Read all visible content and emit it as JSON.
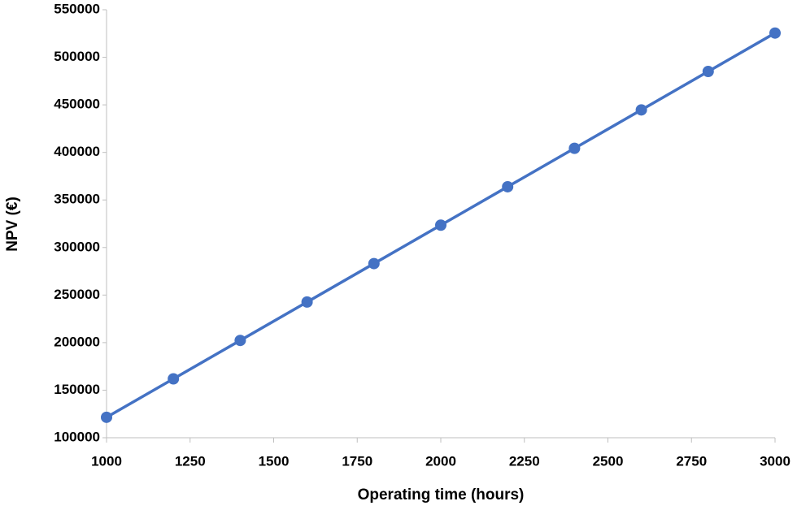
{
  "chart_data": {
    "type": "line",
    "x_label": "Operating time (hours)",
    "y_label": "NPV (€)",
    "x": [
      1000,
      1200,
      1400,
      1600,
      1800,
      2000,
      2200,
      2400,
      2600,
      2800,
      3000
    ],
    "series": [
      {
        "color": "#4472c4",
        "values": [
          121500,
          161900,
          202300,
          242700,
          283100,
          323500,
          363900,
          404300,
          444700,
          485100,
          525500
        ]
      }
    ],
    "xlim": [
      1000,
      3000
    ],
    "xticks": [
      1000,
      1250,
      1500,
      1750,
      2000,
      2250,
      2500,
      2750,
      3000
    ],
    "ylim": [
      100000,
      550000
    ],
    "yticks": [
      100000,
      150000,
      200000,
      250000,
      300000,
      350000,
      400000,
      450000,
      500000,
      550000
    ],
    "grid": false,
    "markers": true
  }
}
